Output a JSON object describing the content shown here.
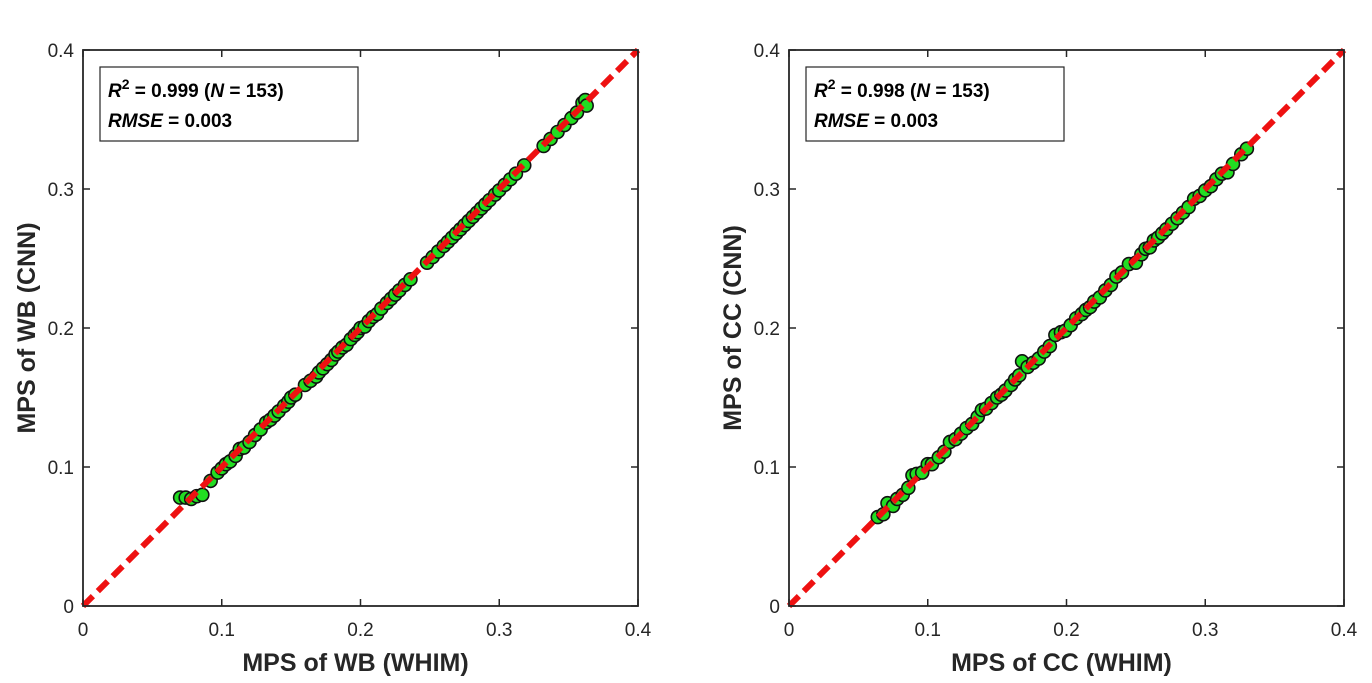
{
  "chart_data": [
    {
      "type": "scatter",
      "xlabel": "MPS of WB (WHIM)",
      "ylabel": "MPS of WB (CNN)",
      "xlim": [
        0,
        0.4
      ],
      "ylim": [
        0,
        0.4
      ],
      "xticks": [
        "0",
        "0.1",
        "0.2",
        "0.3",
        "0.4"
      ],
      "yticks": [
        "0",
        "0.1",
        "0.2",
        "0.3",
        "0.4"
      ],
      "annotation": {
        "r2_label": "R",
        "r2_sup": "2",
        "r2_value": " = 0.999 (",
        "n_label": "N",
        "n_value": " = 153)",
        "rmse_label": "RMSE",
        "rmse_value": " = 0.003"
      },
      "fit_line": [
        [
          0,
          0
        ],
        [
          0.4,
          0.4
        ]
      ],
      "marker_color": "#22dd22",
      "line_color": "#ee1111",
      "points": [
        [
          0.07,
          0.078
        ],
        [
          0.074,
          0.078
        ],
        [
          0.078,
          0.077
        ],
        [
          0.082,
          0.079
        ],
        [
          0.086,
          0.08
        ],
        [
          0.092,
          0.09
        ],
        [
          0.097,
          0.096
        ],
        [
          0.1,
          0.099
        ],
        [
          0.103,
          0.102
        ],
        [
          0.106,
          0.104
        ],
        [
          0.11,
          0.108
        ],
        [
          0.113,
          0.113
        ],
        [
          0.116,
          0.114
        ],
        [
          0.12,
          0.118
        ],
        [
          0.124,
          0.123
        ],
        [
          0.128,
          0.127
        ],
        [
          0.132,
          0.132
        ],
        [
          0.135,
          0.134
        ],
        [
          0.138,
          0.137
        ],
        [
          0.141,
          0.14
        ],
        [
          0.145,
          0.144
        ],
        [
          0.148,
          0.147
        ],
        [
          0.15,
          0.15
        ],
        [
          0.153,
          0.152
        ],
        [
          0.16,
          0.159
        ],
        [
          0.164,
          0.162
        ],
        [
          0.168,
          0.165
        ],
        [
          0.17,
          0.168
        ],
        [
          0.173,
          0.171
        ],
        [
          0.176,
          0.174
        ],
        [
          0.179,
          0.177
        ],
        [
          0.182,
          0.181
        ],
        [
          0.184,
          0.183
        ],
        [
          0.187,
          0.186
        ],
        [
          0.19,
          0.188
        ],
        [
          0.193,
          0.192
        ],
        [
          0.196,
          0.195
        ],
        [
          0.198,
          0.197
        ],
        [
          0.2,
          0.2
        ],
        [
          0.203,
          0.201
        ],
        [
          0.206,
          0.205
        ],
        [
          0.209,
          0.208
        ],
        [
          0.212,
          0.21
        ],
        [
          0.215,
          0.214
        ],
        [
          0.219,
          0.218
        ],
        [
          0.222,
          0.221
        ],
        [
          0.225,
          0.224
        ],
        [
          0.228,
          0.227
        ],
        [
          0.232,
          0.231
        ],
        [
          0.236,
          0.235
        ],
        [
          0.248,
          0.247
        ],
        [
          0.252,
          0.251
        ],
        [
          0.256,
          0.255
        ],
        [
          0.26,
          0.259
        ],
        [
          0.263,
          0.262
        ],
        [
          0.266,
          0.265
        ],
        [
          0.269,
          0.268
        ],
        [
          0.272,
          0.271
        ],
        [
          0.275,
          0.274
        ],
        [
          0.278,
          0.277
        ],
        [
          0.281,
          0.28
        ],
        [
          0.284,
          0.283
        ],
        [
          0.287,
          0.286
        ],
        [
          0.29,
          0.289
        ],
        [
          0.293,
          0.292
        ],
        [
          0.297,
          0.296
        ],
        [
          0.3,
          0.299
        ],
        [
          0.304,
          0.303
        ],
        [
          0.308,
          0.307
        ],
        [
          0.312,
          0.311
        ],
        [
          0.318,
          0.317
        ],
        [
          0.332,
          0.331
        ],
        [
          0.337,
          0.336
        ],
        [
          0.342,
          0.341
        ],
        [
          0.347,
          0.346
        ],
        [
          0.352,
          0.351
        ],
        [
          0.356,
          0.355
        ],
        [
          0.36,
          0.362
        ],
        [
          0.362,
          0.364
        ],
        [
          0.363,
          0.36
        ]
      ]
    },
    {
      "type": "scatter",
      "xlabel": "MPS of CC (WHIM)",
      "ylabel": "MPS of CC (CNN)",
      "xlim": [
        0,
        0.4
      ],
      "ylim": [
        0,
        0.4
      ],
      "xticks": [
        "0",
        "0.1",
        "0.2",
        "0.3",
        "0.4"
      ],
      "yticks": [
        "0",
        "0.1",
        "0.2",
        "0.3",
        "0.4"
      ],
      "annotation": {
        "r2_label": "R",
        "r2_sup": "2",
        "r2_value": " = 0.998 (",
        "n_label": "N",
        "n_value": " = 153)",
        "rmse_label": "RMSE",
        "rmse_value": " = 0.003"
      },
      "fit_line": [
        [
          0,
          0
        ],
        [
          0.4,
          0.4
        ]
      ],
      "marker_color": "#22dd22",
      "line_color": "#ee1111",
      "points": [
        [
          0.064,
          0.064
        ],
        [
          0.068,
          0.066
        ],
        [
          0.071,
          0.074
        ],
        [
          0.075,
          0.072
        ],
        [
          0.078,
          0.077
        ],
        [
          0.082,
          0.08
        ],
        [
          0.086,
          0.085
        ],
        [
          0.089,
          0.094
        ],
        [
          0.092,
          0.095
        ],
        [
          0.096,
          0.096
        ],
        [
          0.1,
          0.102
        ],
        [
          0.103,
          0.102
        ],
        [
          0.108,
          0.107
        ],
        [
          0.112,
          0.111
        ],
        [
          0.116,
          0.118
        ],
        [
          0.12,
          0.12
        ],
        [
          0.124,
          0.124
        ],
        [
          0.128,
          0.128
        ],
        [
          0.132,
          0.131
        ],
        [
          0.136,
          0.136
        ],
        [
          0.139,
          0.141
        ],
        [
          0.142,
          0.142
        ],
        [
          0.146,
          0.146
        ],
        [
          0.15,
          0.15
        ],
        [
          0.153,
          0.152
        ],
        [
          0.156,
          0.155
        ],
        [
          0.16,
          0.159
        ],
        [
          0.163,
          0.163
        ],
        [
          0.166,
          0.166
        ],
        [
          0.168,
          0.176
        ],
        [
          0.172,
          0.172
        ],
        [
          0.176,
          0.175
        ],
        [
          0.18,
          0.178
        ],
        [
          0.184,
          0.183
        ],
        [
          0.188,
          0.187
        ],
        [
          0.192,
          0.195
        ],
        [
          0.196,
          0.197
        ],
        [
          0.199,
          0.198
        ],
        [
          0.203,
          0.202
        ],
        [
          0.207,
          0.207
        ],
        [
          0.211,
          0.21
        ],
        [
          0.214,
          0.213
        ],
        [
          0.217,
          0.215
        ],
        [
          0.22,
          0.219
        ],
        [
          0.224,
          0.222
        ],
        [
          0.228,
          0.227
        ],
        [
          0.232,
          0.231
        ],
        [
          0.236,
          0.237
        ],
        [
          0.24,
          0.24
        ],
        [
          0.245,
          0.246
        ],
        [
          0.25,
          0.247
        ],
        [
          0.254,
          0.253
        ],
        [
          0.257,
          0.257
        ],
        [
          0.26,
          0.258
        ],
        [
          0.263,
          0.263
        ],
        [
          0.266,
          0.265
        ],
        [
          0.269,
          0.268
        ],
        [
          0.272,
          0.271
        ],
        [
          0.276,
          0.275
        ],
        [
          0.28,
          0.279
        ],
        [
          0.284,
          0.283
        ],
        [
          0.288,
          0.287
        ],
        [
          0.292,
          0.293
        ],
        [
          0.296,
          0.295
        ],
        [
          0.3,
          0.299
        ],
        [
          0.304,
          0.302
        ],
        [
          0.308,
          0.307
        ],
        [
          0.312,
          0.311
        ],
        [
          0.316,
          0.312
        ],
        [
          0.32,
          0.318
        ],
        [
          0.326,
          0.325
        ],
        [
          0.33,
          0.329
        ]
      ]
    }
  ]
}
